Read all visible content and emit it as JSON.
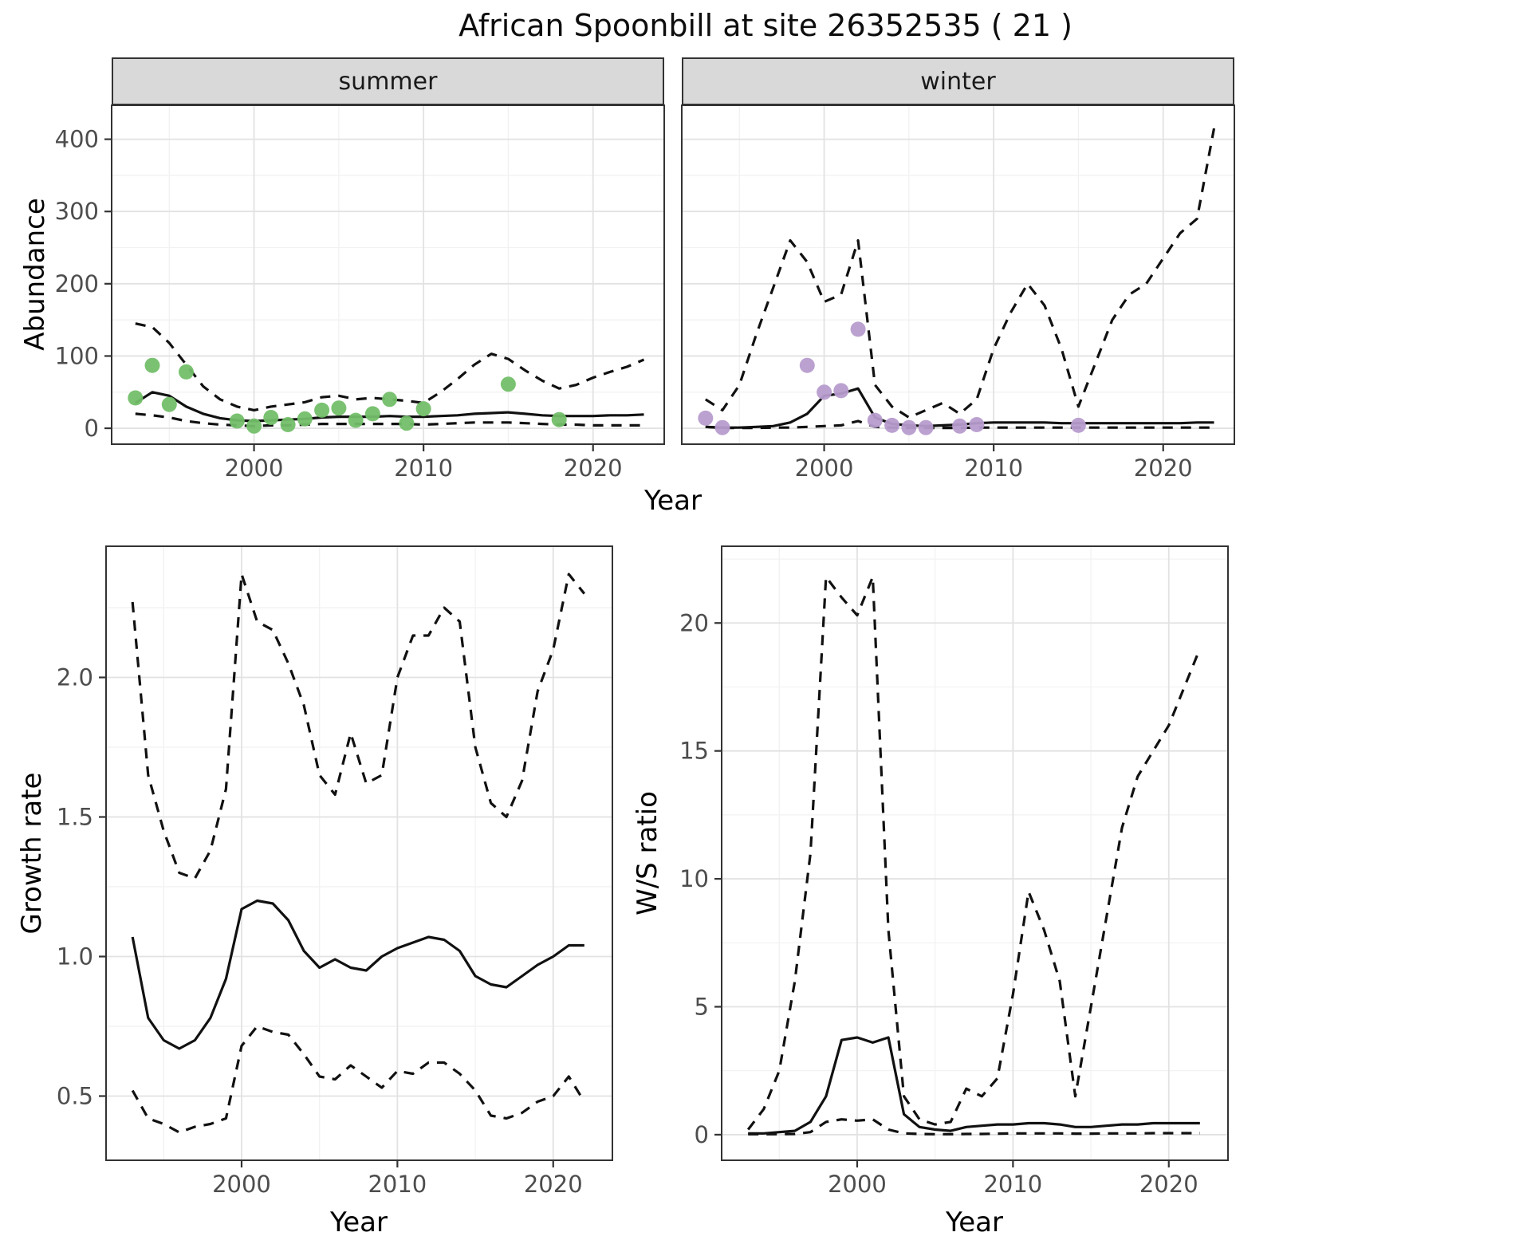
{
  "title": "African Spoonbill at site 26352535 ( 21 )",
  "facets": {
    "summer": "summer",
    "winter": "winter"
  },
  "axis_labels": {
    "abundance": "Abundance",
    "year_top": "Year",
    "growth_rate": "Growth rate",
    "year_growth": "Year",
    "ws_ratio": "W/S ratio",
    "year_ws": "Year"
  },
  "colors": {
    "summer_point": "#73bf69",
    "winter_point": "#b79cce",
    "line": "#111111",
    "grid_major": "#e2e2e2",
    "grid_minor": "#f1f1f1",
    "panel_border": "#333333",
    "strip_bg": "#d9d9d9",
    "tick_label": "#4d4d4d",
    "tick_mark": "#333333"
  },
  "chart_data": [
    {
      "id": "abundance-summer",
      "type": "line",
      "facet": "summer",
      "xlabel": "Year",
      "ylabel": "Abundance",
      "xlim": [
        1991.6,
        2024.2
      ],
      "ylim": [
        -22,
        447
      ],
      "x_ticks": [
        2000,
        2010,
        2020
      ],
      "x_tick_labels": [
        "2000",
        "2010",
        "2020"
      ],
      "y_ticks": [
        0,
        100,
        200,
        300,
        400
      ],
      "y_tick_labels": [
        "0",
        "100",
        "200",
        "300",
        "400"
      ],
      "series": [
        {
          "name": "upper_ci",
          "style": "dashed",
          "x": [
            1993,
            1994,
            1995,
            1996,
            1997,
            1998,
            1999,
            2000,
            2001,
            2002,
            2003,
            2004,
            2005,
            2006,
            2007,
            2008,
            2009,
            2010,
            2011,
            2012,
            2013,
            2014,
            2015,
            2016,
            2017,
            2018,
            2019,
            2020,
            2021,
            2022,
            2023
          ],
          "y": [
            145,
            140,
            118,
            88,
            58,
            40,
            30,
            25,
            30,
            33,
            36,
            43,
            45,
            40,
            42,
            40,
            38,
            35,
            50,
            68,
            88,
            103,
            96,
            80,
            66,
            55,
            60,
            70,
            78,
            85,
            95
          ]
        },
        {
          "name": "fit",
          "style": "solid",
          "x": [
            1993,
            1994,
            1995,
            1996,
            1997,
            1998,
            1999,
            2000,
            2001,
            2002,
            2003,
            2004,
            2005,
            2006,
            2007,
            2008,
            2009,
            2010,
            2011,
            2012,
            2013,
            2014,
            2015,
            2016,
            2017,
            2018,
            2019,
            2020,
            2021,
            2022,
            2023
          ],
          "y": [
            35,
            50,
            45,
            30,
            20,
            14,
            11,
            10,
            11,
            12,
            13,
            15,
            16,
            16,
            16,
            17,
            16,
            16,
            17,
            18,
            20,
            21,
            22,
            20,
            18,
            17,
            17,
            17,
            18,
            18,
            19
          ]
        },
        {
          "name": "lower_ci",
          "style": "dashed",
          "x": [
            1993,
            1994,
            1995,
            1996,
            1997,
            1998,
            1999,
            2000,
            2001,
            2002,
            2003,
            2004,
            2005,
            2006,
            2007,
            2008,
            2009,
            2010,
            2011,
            2012,
            2013,
            2014,
            2015,
            2016,
            2017,
            2018,
            2019,
            2020,
            2021,
            2022,
            2023
          ],
          "y": [
            20,
            18,
            15,
            10,
            7,
            5,
            4,
            3,
            4,
            4,
            5,
            6,
            6,
            6,
            6,
            6,
            6,
            5,
            6,
            7,
            8,
            8,
            8,
            7,
            6,
            5,
            5,
            4,
            4,
            4,
            4
          ]
        }
      ],
      "points": {
        "name": "observations-summer",
        "color_key": "summer_point",
        "x": [
          1993,
          1994,
          1995,
          1996,
          1999,
          2000,
          2001,
          2002,
          2003,
          2004,
          2005,
          2006,
          2007,
          2008,
          2009,
          2010,
          2015,
          2018
        ],
        "y": [
          42,
          87,
          33,
          78,
          10,
          3,
          15,
          5,
          13,
          25,
          28,
          11,
          20,
          40,
          7,
          27,
          61,
          12
        ]
      }
    },
    {
      "id": "abundance-winter",
      "type": "line",
      "facet": "winter",
      "xlabel": "Year",
      "ylabel": "Abundance",
      "xlim": [
        1991.6,
        2024.2
      ],
      "ylim": [
        -22,
        447
      ],
      "x_ticks": [
        2000,
        2010,
        2020
      ],
      "x_tick_labels": [
        "2000",
        "2010",
        "2020"
      ],
      "y_ticks": [
        0,
        100,
        200,
        300,
        400
      ],
      "y_tick_labels": [
        "0",
        "100",
        "200",
        "300",
        "400"
      ],
      "series": [
        {
          "name": "upper_ci",
          "style": "dashed",
          "x": [
            1993,
            1994,
            1995,
            1996,
            1997,
            1998,
            1999,
            2000,
            2001,
            2002,
            2003,
            2004,
            2005,
            2006,
            2007,
            2008,
            2009,
            2010,
            2011,
            2012,
            2013,
            2014,
            2015,
            2016,
            2017,
            2018,
            2019,
            2020,
            2021,
            2022,
            2023
          ],
          "y": [
            40,
            25,
            60,
            130,
            195,
            260,
            230,
            175,
            185,
            260,
            60,
            30,
            15,
            25,
            35,
            20,
            40,
            110,
            160,
            200,
            170,
            110,
            30,
            90,
            150,
            185,
            200,
            235,
            270,
            290,
            415
          ]
        },
        {
          "name": "fit",
          "style": "solid",
          "x": [
            1993,
            1994,
            1995,
            1996,
            1997,
            1998,
            1999,
            2000,
            2001,
            2002,
            2003,
            2004,
            2005,
            2006,
            2007,
            2008,
            2009,
            2010,
            2011,
            2012,
            2013,
            2014,
            2015,
            2016,
            2017,
            2018,
            2019,
            2020,
            2021,
            2022,
            2023
          ],
          "y": [
            2,
            1,
            1,
            2,
            3,
            8,
            20,
            45,
            48,
            55,
            15,
            6,
            4,
            3,
            4,
            5,
            7,
            8,
            8,
            8,
            8,
            7,
            7,
            7,
            7,
            7,
            7,
            7,
            7,
            8,
            8
          ]
        },
        {
          "name": "lower_ci",
          "style": "dashed",
          "x": [
            1993,
            1994,
            1995,
            1996,
            1997,
            1998,
            1999,
            2000,
            2001,
            2002,
            2003,
            2004,
            2005,
            2006,
            2007,
            2008,
            2009,
            2010,
            2011,
            2012,
            2013,
            2014,
            2015,
            2016,
            2017,
            2018,
            2019,
            2020,
            2021,
            2022,
            2023
          ],
          "y": [
            2,
            0.5,
            0.5,
            0.5,
            1,
            1,
            2,
            3,
            4,
            10,
            2,
            1,
            0.5,
            0.5,
            0.5,
            0.5,
            1,
            1,
            1,
            1,
            1,
            1,
            1,
            1,
            1,
            1,
            1,
            1,
            1,
            1,
            1
          ]
        }
      ],
      "points": {
        "name": "observations-winter",
        "color_key": "winter_point",
        "x": [
          1993,
          1994,
          1999,
          2000,
          2001,
          2002,
          2003,
          2004,
          2005,
          2006,
          2008,
          2009,
          2015
        ],
        "y": [
          14,
          1,
          87,
          50,
          52,
          137,
          11,
          4,
          1,
          1,
          3,
          5,
          4
        ]
      }
    },
    {
      "id": "growth-rate",
      "type": "line",
      "xlabel": "Year",
      "ylabel": "Growth rate",
      "xlim": [
        1991.3,
        2023.8
      ],
      "ylim": [
        0.27,
        2.47
      ],
      "x_ticks": [
        2000,
        2010,
        2020
      ],
      "x_tick_labels": [
        "2000",
        "2010",
        "2020"
      ],
      "y_ticks": [
        0.5,
        1.0,
        1.5,
        2.0
      ],
      "y_tick_labels": [
        "0.5",
        "1.0",
        "1.5",
        "2.0"
      ],
      "series": [
        {
          "name": "upper_ci",
          "style": "dashed",
          "x": [
            1993,
            1994,
            1995,
            1996,
            1997,
            1998,
            1999,
            2000,
            2001,
            2002,
            2003,
            2004,
            2005,
            2006,
            2007,
            2008,
            2009,
            2010,
            2011,
            2012,
            2013,
            2014,
            2015,
            2016,
            2017,
            2018,
            2019,
            2020,
            2021,
            2022
          ],
          "y": [
            2.27,
            1.65,
            1.45,
            1.3,
            1.28,
            1.38,
            1.6,
            2.37,
            2.2,
            2.17,
            2.05,
            1.9,
            1.65,
            1.58,
            1.8,
            1.62,
            1.65,
            2.0,
            2.15,
            2.15,
            2.25,
            2.2,
            1.75,
            1.55,
            1.5,
            1.63,
            1.95,
            2.1,
            2.37,
            2.3
          ]
        },
        {
          "name": "fit",
          "style": "solid",
          "x": [
            1993,
            1994,
            1995,
            1996,
            1997,
            1998,
            1999,
            2000,
            2001,
            2002,
            2003,
            2004,
            2005,
            2006,
            2007,
            2008,
            2009,
            2010,
            2011,
            2012,
            2013,
            2014,
            2015,
            2016,
            2017,
            2018,
            2019,
            2020,
            2021,
            2022
          ],
          "y": [
            1.07,
            0.78,
            0.7,
            0.67,
            0.7,
            0.78,
            0.92,
            1.17,
            1.2,
            1.19,
            1.13,
            1.02,
            0.96,
            0.99,
            0.96,
            0.95,
            1.0,
            1.03,
            1.05,
            1.07,
            1.06,
            1.02,
            0.93,
            0.9,
            0.89,
            0.93,
            0.97,
            1.0,
            1.04,
            1.04
          ]
        },
        {
          "name": "lower_ci",
          "style": "dashed",
          "x": [
            1993,
            1994,
            1995,
            1996,
            1997,
            1998,
            1999,
            2000,
            2001,
            2002,
            2003,
            2004,
            2005,
            2006,
            2007,
            2008,
            2009,
            2010,
            2011,
            2012,
            2013,
            2014,
            2015,
            2016,
            2017,
            2018,
            2019,
            2020,
            2021,
            2022
          ],
          "y": [
            0.52,
            0.42,
            0.4,
            0.37,
            0.39,
            0.4,
            0.42,
            0.68,
            0.75,
            0.73,
            0.72,
            0.65,
            0.57,
            0.56,
            0.61,
            0.57,
            0.53,
            0.59,
            0.58,
            0.62,
            0.62,
            0.58,
            0.52,
            0.43,
            0.42,
            0.44,
            0.48,
            0.5,
            0.57,
            0.48
          ]
        }
      ],
      "points": null
    },
    {
      "id": "ws-ratio",
      "type": "line",
      "xlabel": "Year",
      "ylabel": "W/S ratio",
      "xlim": [
        1991.3,
        2023.8
      ],
      "ylim": [
        -1.0,
        23.0
      ],
      "x_ticks": [
        2000,
        2010,
        2020
      ],
      "x_tick_labels": [
        "2000",
        "2010",
        "2020"
      ],
      "y_ticks": [
        0,
        5,
        10,
        15,
        20
      ],
      "y_tick_labels": [
        "0",
        "5",
        "10",
        "15",
        "20"
      ],
      "series": [
        {
          "name": "upper_ci",
          "style": "dashed",
          "x": [
            1993,
            1994,
            1995,
            1996,
            1997,
            1998,
            1999,
            2000,
            2001,
            2002,
            2003,
            2004,
            2005,
            2006,
            2007,
            2008,
            2009,
            2010,
            2011,
            2012,
            2013,
            2014,
            2015,
            2016,
            2017,
            2018,
            2019,
            2020,
            2021,
            2022
          ],
          "y": [
            0.2,
            1.0,
            2.5,
            6.0,
            11.0,
            21.8,
            21.0,
            20.3,
            21.8,
            8.0,
            1.5,
            0.6,
            0.4,
            0.5,
            1.8,
            1.5,
            2.2,
            5.5,
            9.5,
            8.0,
            6.0,
            1.5,
            5.0,
            8.5,
            12.0,
            14.0,
            15.0,
            16.0,
            17.5,
            19.0
          ]
        },
        {
          "name": "fit",
          "style": "solid",
          "x": [
            1993,
            1994,
            1995,
            1996,
            1997,
            1998,
            1999,
            2000,
            2001,
            2002,
            2003,
            2004,
            2005,
            2006,
            2007,
            2008,
            2009,
            2010,
            2011,
            2012,
            2013,
            2014,
            2015,
            2016,
            2017,
            2018,
            2019,
            2020,
            2021,
            2022
          ],
          "y": [
            0.05,
            0.05,
            0.1,
            0.15,
            0.5,
            1.5,
            3.7,
            3.8,
            3.6,
            3.8,
            0.8,
            0.3,
            0.2,
            0.15,
            0.3,
            0.35,
            0.4,
            0.4,
            0.45,
            0.45,
            0.4,
            0.3,
            0.3,
            0.35,
            0.4,
            0.4,
            0.45,
            0.45,
            0.45,
            0.45
          ]
        },
        {
          "name": "lower_ci",
          "style": "dashed",
          "x": [
            1993,
            1994,
            1995,
            1996,
            1997,
            1998,
            1999,
            2000,
            2001,
            2002,
            2003,
            2004,
            2005,
            2006,
            2007,
            2008,
            2009,
            2010,
            2011,
            2012,
            2013,
            2014,
            2015,
            2016,
            2017,
            2018,
            2019,
            2020,
            2021,
            2022
          ],
          "y": [
            0.02,
            0.02,
            0.02,
            0.03,
            0.1,
            0.5,
            0.6,
            0.55,
            0.6,
            0.2,
            0.05,
            0.03,
            0.02,
            0.02,
            0.03,
            0.03,
            0.04,
            0.05,
            0.05,
            0.05,
            0.05,
            0.04,
            0.04,
            0.05,
            0.05,
            0.05,
            0.06,
            0.06,
            0.06,
            0.06
          ]
        }
      ],
      "points": null
    }
  ]
}
